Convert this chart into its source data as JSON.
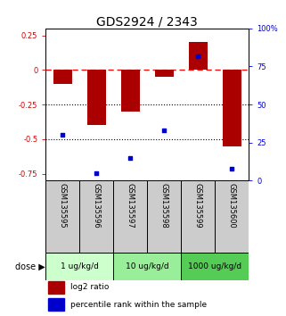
{
  "title": "GDS2924 / 2343",
  "samples": [
    "GSM135595",
    "GSM135596",
    "GSM135597",
    "GSM135598",
    "GSM135599",
    "GSM135600"
  ],
  "log2_ratio": [
    -0.1,
    -0.4,
    -0.3,
    -0.05,
    0.2,
    -0.55
  ],
  "percentile_rank": [
    30,
    5,
    15,
    33,
    82,
    8
  ],
  "ylim_left": [
    -0.8,
    0.3
  ],
  "ylim_right": [
    0,
    100
  ],
  "yticks_left": [
    0.25,
    0,
    -0.25,
    -0.5,
    -0.75
  ],
  "yticks_right": [
    100,
    75,
    50,
    25,
    0
  ],
  "hlines_black_dotted": [
    -0.25,
    -0.5
  ],
  "hline_red_dashed": 0,
  "bar_color": "#aa0000",
  "dot_color": "#0000cc",
  "bar_width": 0.55,
  "dose_groups": [
    {
      "label": "1 ug/kg/d",
      "color": "#ccffcc",
      "start": 0,
      "end": 1
    },
    {
      "label": "10 ug/kg/d",
      "color": "#99ee99",
      "start": 2,
      "end": 3
    },
    {
      "label": "1000 ug/kg/d",
      "color": "#55cc55",
      "start": 4,
      "end": 5
    }
  ],
  "legend_items": [
    {
      "label": "log2 ratio",
      "color": "#aa0000"
    },
    {
      "label": "percentile rank within the sample",
      "color": "#0000cc"
    }
  ],
  "tick_fontsize": 6,
  "title_fontsize": 10,
  "sample_fontsize": 6,
  "dose_fontsize": 6.5,
  "legend_fontsize": 6.5,
  "label_color_left": "#cc0000",
  "label_color_right": "#0000cc",
  "sample_bg_color": "#cccccc"
}
